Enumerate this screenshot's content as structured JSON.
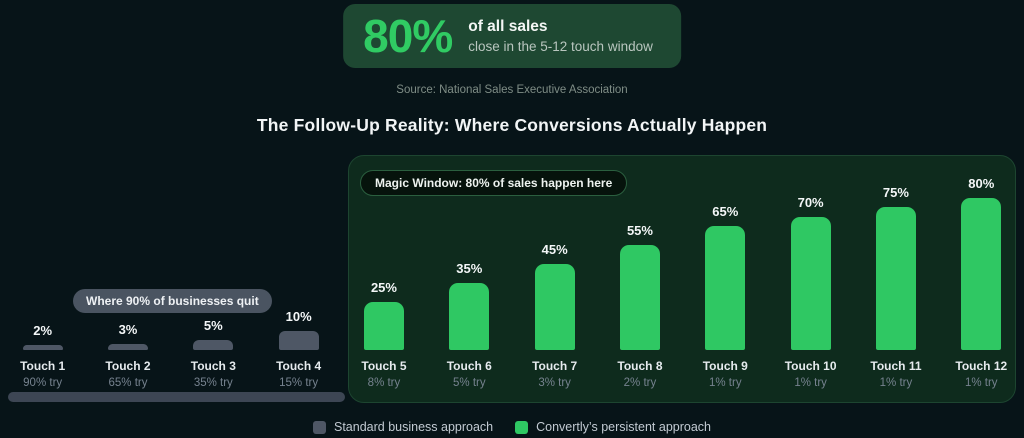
{
  "colors": {
    "background": "#071418",
    "accent_green": "#30cb63",
    "bar_green": "#2fc863",
    "bar_gray": "#4e5765",
    "magic_panel_bg": "#0e2b1d",
    "magic_panel_border": "#1d4530",
    "badge_bg": "#1e4832",
    "quit_pill_bg": "#4a5461",
    "floor_bar": "#3d4654"
  },
  "badge": {
    "stat": "80%",
    "headline": "of all sales",
    "subline": "close in the 5-12 touch window"
  },
  "source": "Source: National Sales Executive Association",
  "title": "The Follow-Up Reality: Where Conversions Actually Happen",
  "annotations": {
    "magic_window": "Magic Window: 80% of sales happen here",
    "quit_zone": "Where 90% of businesses quit"
  },
  "legend": {
    "items": [
      {
        "label": "Standard business approach",
        "color": "#4e5765"
      },
      {
        "label": "Convertly’s persistent approach",
        "color": "#2fc863"
      }
    ]
  },
  "chart_data": {
    "type": "bar",
    "title": "The Follow-Up Reality: Where Conversions Actually Happen",
    "categories": [
      "Touch 1",
      "Touch 2",
      "Touch 3",
      "Touch 4",
      "Touch 5",
      "Touch 6",
      "Touch 7",
      "Touch 8",
      "Touch 9",
      "Touch 10",
      "Touch 11",
      "Touch 12"
    ],
    "values": [
      2,
      3,
      5,
      10,
      25,
      35,
      45,
      55,
      65,
      70,
      75,
      80
    ],
    "value_labels": [
      "2%",
      "3%",
      "5%",
      "10%",
      "25%",
      "35%",
      "45%",
      "55%",
      "65%",
      "70%",
      "75%",
      "80%"
    ],
    "sub_labels": [
      "90% try",
      "65% try",
      "35% try",
      "15% try",
      "8% try",
      "5% try",
      "3% try",
      "2% try",
      "1% try",
      "1% try",
      "1% try",
      "1% try"
    ],
    "series_membership": [
      "standard",
      "standard",
      "standard",
      "standard",
      "persistent",
      "persistent",
      "persistent",
      "persistent",
      "persistent",
      "persistent",
      "persistent",
      "persistent"
    ],
    "series": [
      {
        "name": "Standard business approach",
        "touches": "Touch 1-4",
        "values": [
          2,
          3,
          5,
          10
        ]
      },
      {
        "name": "Convertly’s persistent approach",
        "touches": "Touch 5-12",
        "values": [
          25,
          35,
          45,
          55,
          65,
          70,
          75,
          80
        ]
      }
    ],
    "ylim": [
      0,
      100
    ],
    "grid": false,
    "legend_position": "bottom",
    "annotations": [
      "Where 90% of businesses quit",
      "Magic Window: 80% of sales happen here"
    ]
  }
}
